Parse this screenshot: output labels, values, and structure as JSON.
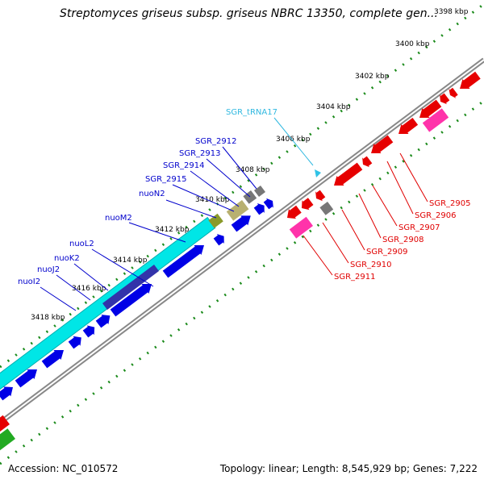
{
  "title": "Streptomyces griseus subsp. griseus NBRC 13350, complete gen...",
  "footer": {
    "accession": "Accession: NC_010572",
    "summary": "Topology: linear; Length: 8,545,929 bp; Genes: 7,222"
  },
  "colors": {
    "forward_cds": "#0000e6",
    "reverse_cds": "#e60000",
    "rrna_like": "#00e6e6",
    "pseudo": "#ff33aa",
    "trna": "#2fc2e6",
    "unknown_gray": "#777777",
    "olive": "#8a9a2a",
    "khaki": "#b8b070",
    "green": "#22aa22",
    "tick": "#1a8a1a",
    "backbone": "#888888"
  },
  "ruler": {
    "unit": "kbp",
    "labels": [
      "3398 kbp",
      "3400 kbp",
      "3402 kbp",
      "3404 kbp",
      "3406 kbp",
      "3408 kbp",
      "3410 kbp",
      "3412 kbp",
      "3414 kbp",
      "3416 kbp",
      "3418 kbp"
    ]
  },
  "genes": {
    "forward": [
      "SGR_2912",
      "SGR_2913",
      "SGR_2914",
      "SGR_2915",
      "nuoN2",
      "nuoM2",
      "nuoL2",
      "nuoK2",
      "nuoJ2",
      "nuoI2"
    ],
    "reverse": [
      "SGR_2905",
      "SGR_2906",
      "SGR_2907",
      "SGR_2908",
      "SGR_2909",
      "SGR_2910",
      "SGR_2911"
    ],
    "trna": [
      "SGR_tRNA17"
    ]
  }
}
